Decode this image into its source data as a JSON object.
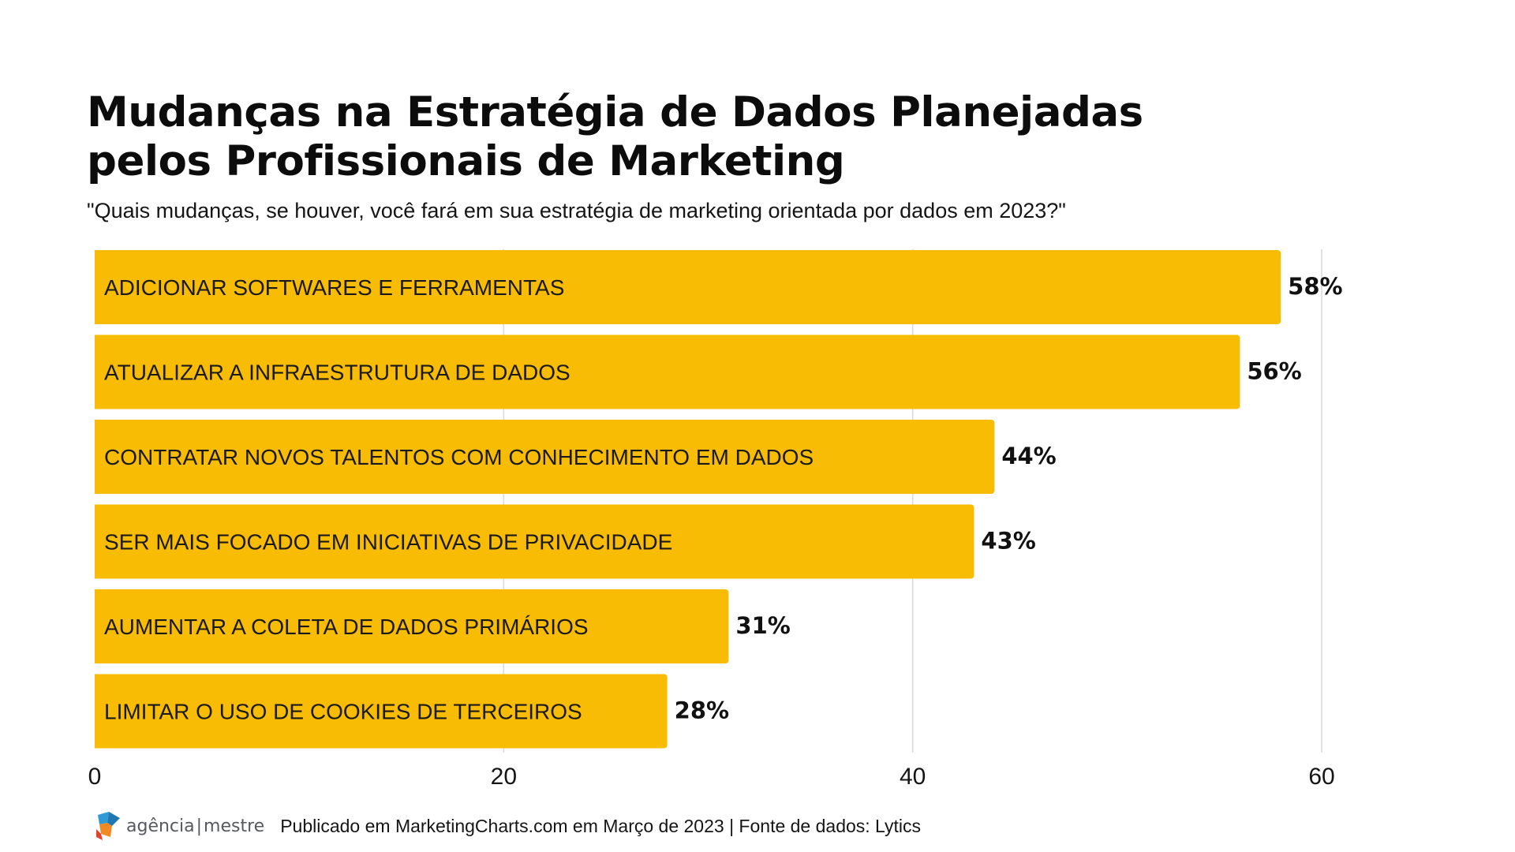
{
  "chart_data": {
    "type": "bar",
    "orientation": "horizontal",
    "title_lines": [
      "Mudanças na Estratégia de Dados Planejadas",
      "pelos Profissionais de Marketing"
    ],
    "subtitle": "\"Quais mudanças, se houver, você fará em sua estratégia de marketing orientada por dados em 2023?\"",
    "categories": [
      "ADICIONAR SOFTWARES E FERRAMENTAS",
      "ATUALIZAR A INFRAESTRUTURA DE DADOS",
      "CONTRATAR NOVOS TALENTOS COM CONHECIMENTO EM DADOS",
      "SER MAIS FOCADO EM INICIATIVAS DE PRIVACIDADE",
      "AUMENTAR A COLETA DE DADOS PRIMÁRIOS",
      "LIMITAR O USO DE COOKIES DE TERCEIROS"
    ],
    "values": [
      58,
      56,
      44,
      43,
      31,
      28
    ],
    "value_labels": [
      "58%",
      "56%",
      "44%",
      "43%",
      "31%",
      "28%"
    ],
    "xlim": [
      0,
      60
    ],
    "xticks": [
      0,
      20,
      40,
      60
    ],
    "xtick_labels": [
      "0",
      "20",
      "40",
      "60"
    ],
    "xlabel": "",
    "ylabel": "",
    "grid": true,
    "bar_color": "#F9BC04",
    "grid_color": "#D9D9D9"
  },
  "footer": {
    "logo_left": "agência",
    "logo_sep": "|",
    "logo_right": "mestre",
    "note": "Publicado em MarketingCharts.com em Março de 2023 | Fonte de dados: Lytics"
  },
  "colors": {
    "bar": "#F9BC04",
    "text": "#111111",
    "logo_blue": "#2E9BD6",
    "logo_orange": "#F08A24",
    "logo_red": "#E2412B"
  }
}
